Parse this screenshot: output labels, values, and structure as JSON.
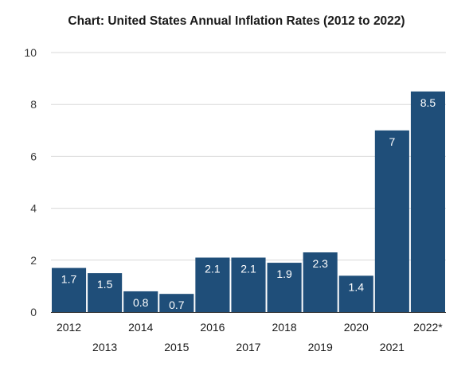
{
  "chart_data": {
    "type": "bar",
    "title": "Chart: United States Annual Inflation Rates (2012 to 2022)",
    "xlabel": "",
    "ylabel": "",
    "categories": [
      "2012",
      "2013",
      "2014",
      "2015",
      "2016",
      "2017",
      "2018",
      "2019",
      "2020",
      "2021",
      "2022*"
    ],
    "values": [
      1.7,
      1.5,
      0.8,
      0.7,
      2.1,
      2.1,
      1.9,
      2.3,
      1.4,
      7,
      8.5
    ],
    "data_labels": [
      "1.7",
      "1.5",
      "0.8",
      "0.7",
      "2.1",
      "2.1",
      "1.9",
      "2.3",
      "1.4",
      "7",
      "8.5"
    ],
    "ylim": [
      0,
      10
    ],
    "yticks": [
      "0",
      "2",
      "4",
      "6",
      "8",
      "10"
    ],
    "grid": true,
    "legend": "none",
    "bar_color": "#1f4e79",
    "grid_color": "#d9d9d9",
    "axis_color": "#333333"
  }
}
